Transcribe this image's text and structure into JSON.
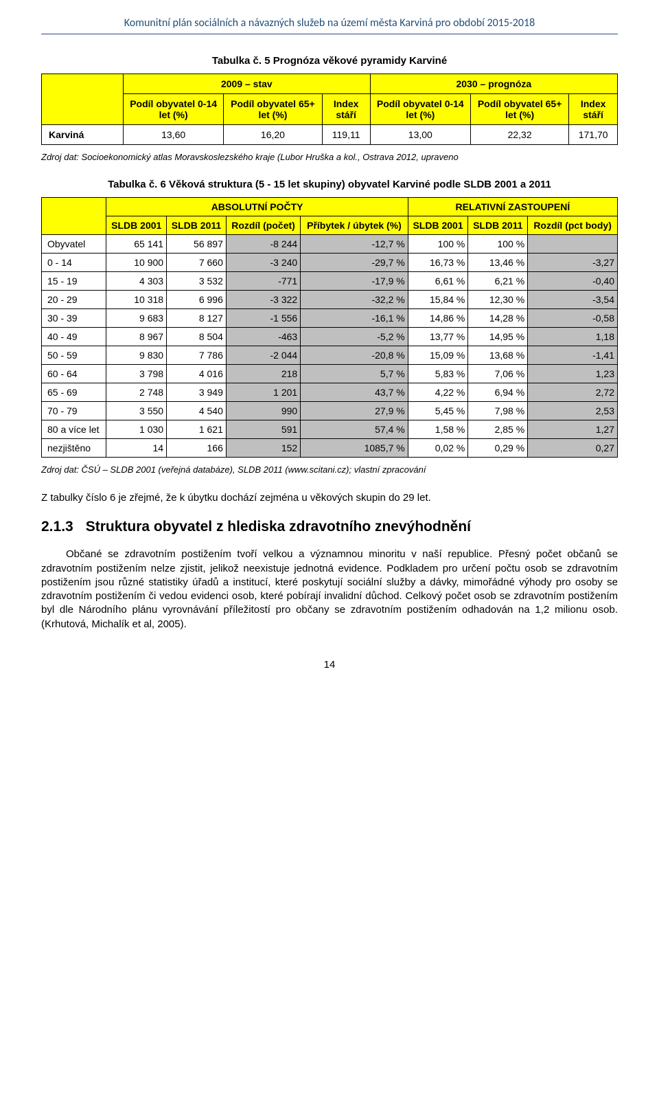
{
  "header": {
    "title": "Komunitní plán sociálních a návazných služeb na území města Karviná pro období 2015-2018"
  },
  "table5": {
    "caption": "Tabulka č. 5 Prognóza věkové pyramidy Karviné",
    "super_headers": [
      "",
      "2009 – stav",
      "2030 – prognóza"
    ],
    "col_headers": [
      "Podíl obyvatel 0-14 let (%)",
      "Podíl obyvatel 65+ let (%)",
      "Index stáří",
      "Podíl obyvatel 0-14 let (%)",
      "Podíl obyvatel 65+ let (%)",
      "Index stáří"
    ],
    "row": {
      "label": "Karviná",
      "cells": [
        "13,60",
        "16,20",
        "119,11",
        "13,00",
        "22,32",
        "171,70"
      ]
    },
    "citation": "Zdroj dat: Socioekonomický atlas Moravskoslezského kraje (Lubor Hruška a kol., Ostrava 2012, upraveno"
  },
  "table6": {
    "caption": "Tabulka č. 6 Věková struktura (5 - 15 let skupiny) obyvatel Karviné podle SLDB 2001 a 2011",
    "section_headers": [
      "ABSOLUTNÍ POČTY",
      "RELATIVNÍ ZASTOUPENÍ"
    ],
    "col_headers": [
      "SLDB 2001",
      "SLDB 2011",
      "Rozdíl (počet)",
      "Příbytek / úbytek (%)",
      "SLDB 2001",
      "SLDB 2011",
      "Rozdíl (pct body)"
    ],
    "rows": [
      {
        "label": "Obyvatel",
        "cells": [
          "65 141",
          "56 897",
          "-8 244",
          "-12,7 %",
          "100 %",
          "100 %",
          ""
        ]
      },
      {
        "label": "0 - 14",
        "cells": [
          "10 900",
          "7 660",
          "-3 240",
          "-29,7 %",
          "16,73 %",
          "13,46 %",
          "-3,27"
        ]
      },
      {
        "label": "15 - 19",
        "cells": [
          "4 303",
          "3 532",
          "-771",
          "-17,9 %",
          "6,61 %",
          "6,21 %",
          "-0,40"
        ]
      },
      {
        "label": "20 - 29",
        "cells": [
          "10 318",
          "6 996",
          "-3 322",
          "-32,2 %",
          "15,84 %",
          "12,30 %",
          "-3,54"
        ]
      },
      {
        "label": "30 - 39",
        "cells": [
          "9 683",
          "8 127",
          "-1 556",
          "-16,1 %",
          "14,86 %",
          "14,28 %",
          "-0,58"
        ]
      },
      {
        "label": "40 - 49",
        "cells": [
          "8 967",
          "8 504",
          "-463",
          "-5,2 %",
          "13,77 %",
          "14,95 %",
          "1,18"
        ]
      },
      {
        "label": "50 - 59",
        "cells": [
          "9 830",
          "7 786",
          "-2 044",
          "-20,8 %",
          "15,09 %",
          "13,68 %",
          "-1,41"
        ]
      },
      {
        "label": "60 - 64",
        "cells": [
          "3 798",
          "4 016",
          "218",
          "5,7 %",
          "5,83 %",
          "7,06 %",
          "1,23"
        ]
      },
      {
        "label": "65 - 69",
        "cells": [
          "2 748",
          "3 949",
          "1 201",
          "43,7 %",
          "4,22 %",
          "6,94 %",
          "2,72"
        ]
      },
      {
        "label": "70 - 79",
        "cells": [
          "3 550",
          "4 540",
          "990",
          "27,9 %",
          "5,45 %",
          "7,98 %",
          "2,53"
        ]
      },
      {
        "label": "80 a více let",
        "cells": [
          "1 030",
          "1 621",
          "591",
          "57,4 %",
          "1,58 %",
          "2,85 %",
          "1,27"
        ]
      },
      {
        "label": "nezjištěno",
        "cells": [
          "14",
          "166",
          "152",
          "1085,7 %",
          "0,02 %",
          "0,29 %",
          "0,27"
        ]
      }
    ],
    "citation": "Zdroj dat: ČSÚ – SLDB 2001 (veřejná databáze), SLDB 2011 (www.scitani.cz); vlastní zpracování"
  },
  "paragraphs": {
    "summary": "Z tabulky číslo 6 je zřejmé, že k úbytku dochází zejména u věkových skupin do 29 let.",
    "section_num": "2.1.3",
    "section_title": "Struktura obyvatel z hlediska zdravotního znevýhodnění",
    "section_body": "Občané se zdravotním postižením tvoří velkou a významnou minoritu v naší republice. Přesný počet občanů se zdravotním postižením nelze zjistit, jelikož neexistuje jednotná evidence. Podkladem pro určení počtu osob se zdravotním postižením jsou různé statistiky úřadů a institucí, které poskytují sociální služby a dávky, mimořádné výhody pro osoby se zdravotním postižením či vedou evidenci osob, které pobírají invalidní důchod. Celkový počet osob se zdravotním postižením byl dle Národního plánu vyrovnávání příležitostí pro občany se zdravotním postižením odhadován na 1,2 milionu osob. (Krhutová, Michalík et al, 2005)."
  },
  "page_number": "14",
  "colors": {
    "header_blue": "#1f4e79",
    "highlight_yellow": "#ffff00",
    "shade_grey": "#bfbfbf",
    "border": "#000000",
    "background": "#ffffff"
  }
}
